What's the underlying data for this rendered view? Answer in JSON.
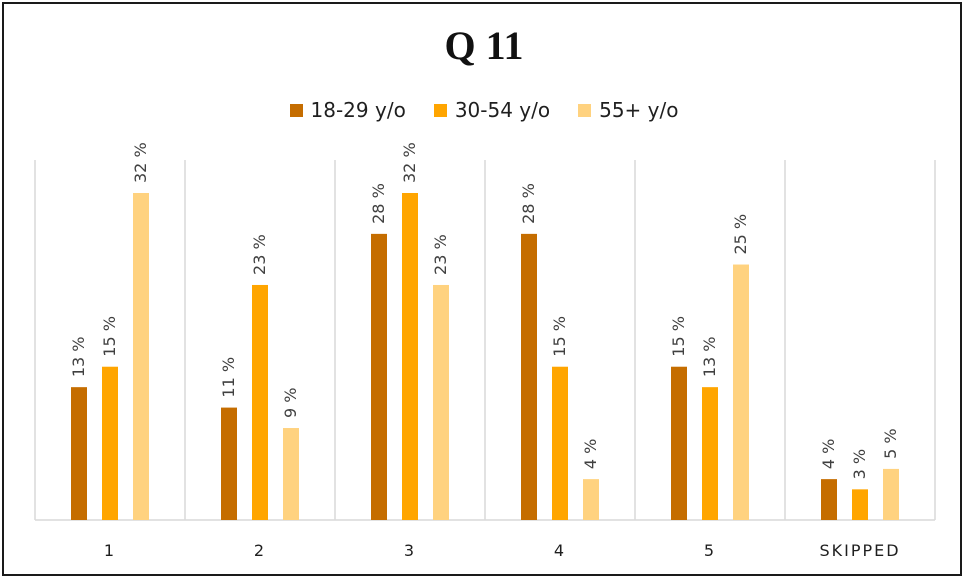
{
  "chart_data": {
    "type": "bar",
    "title": "Q 11",
    "categories": [
      "1",
      "2",
      "3",
      "4",
      "5",
      "SKIPPED"
    ],
    "series": [
      {
        "name": "18-29 y/o",
        "color": "#c56d00",
        "values": [
          13,
          11,
          28,
          28,
          15,
          4
        ],
        "labels": [
          "13 %",
          "11 %",
          "28 %",
          "28 %",
          "15 %",
          "4 %"
        ]
      },
      {
        "name": "30-54 y/o",
        "color": "#ffa500",
        "values": [
          15,
          23,
          32,
          15,
          13,
          3
        ],
        "labels": [
          "15 %",
          "23 %",
          "32 %",
          "15 %",
          "13 %",
          "3 %"
        ]
      },
      {
        "name": "55+ y/o",
        "color": "#ffd27f",
        "values": [
          32,
          9,
          23,
          4,
          25,
          5
        ],
        "labels": [
          "32 %",
          "9 %",
          "23 %",
          "4 %",
          "25 %",
          "5 %"
        ]
      }
    ],
    "ylim": [
      0,
      32
    ],
    "legend_position": "top",
    "grid": "vertical separators between categories"
  }
}
